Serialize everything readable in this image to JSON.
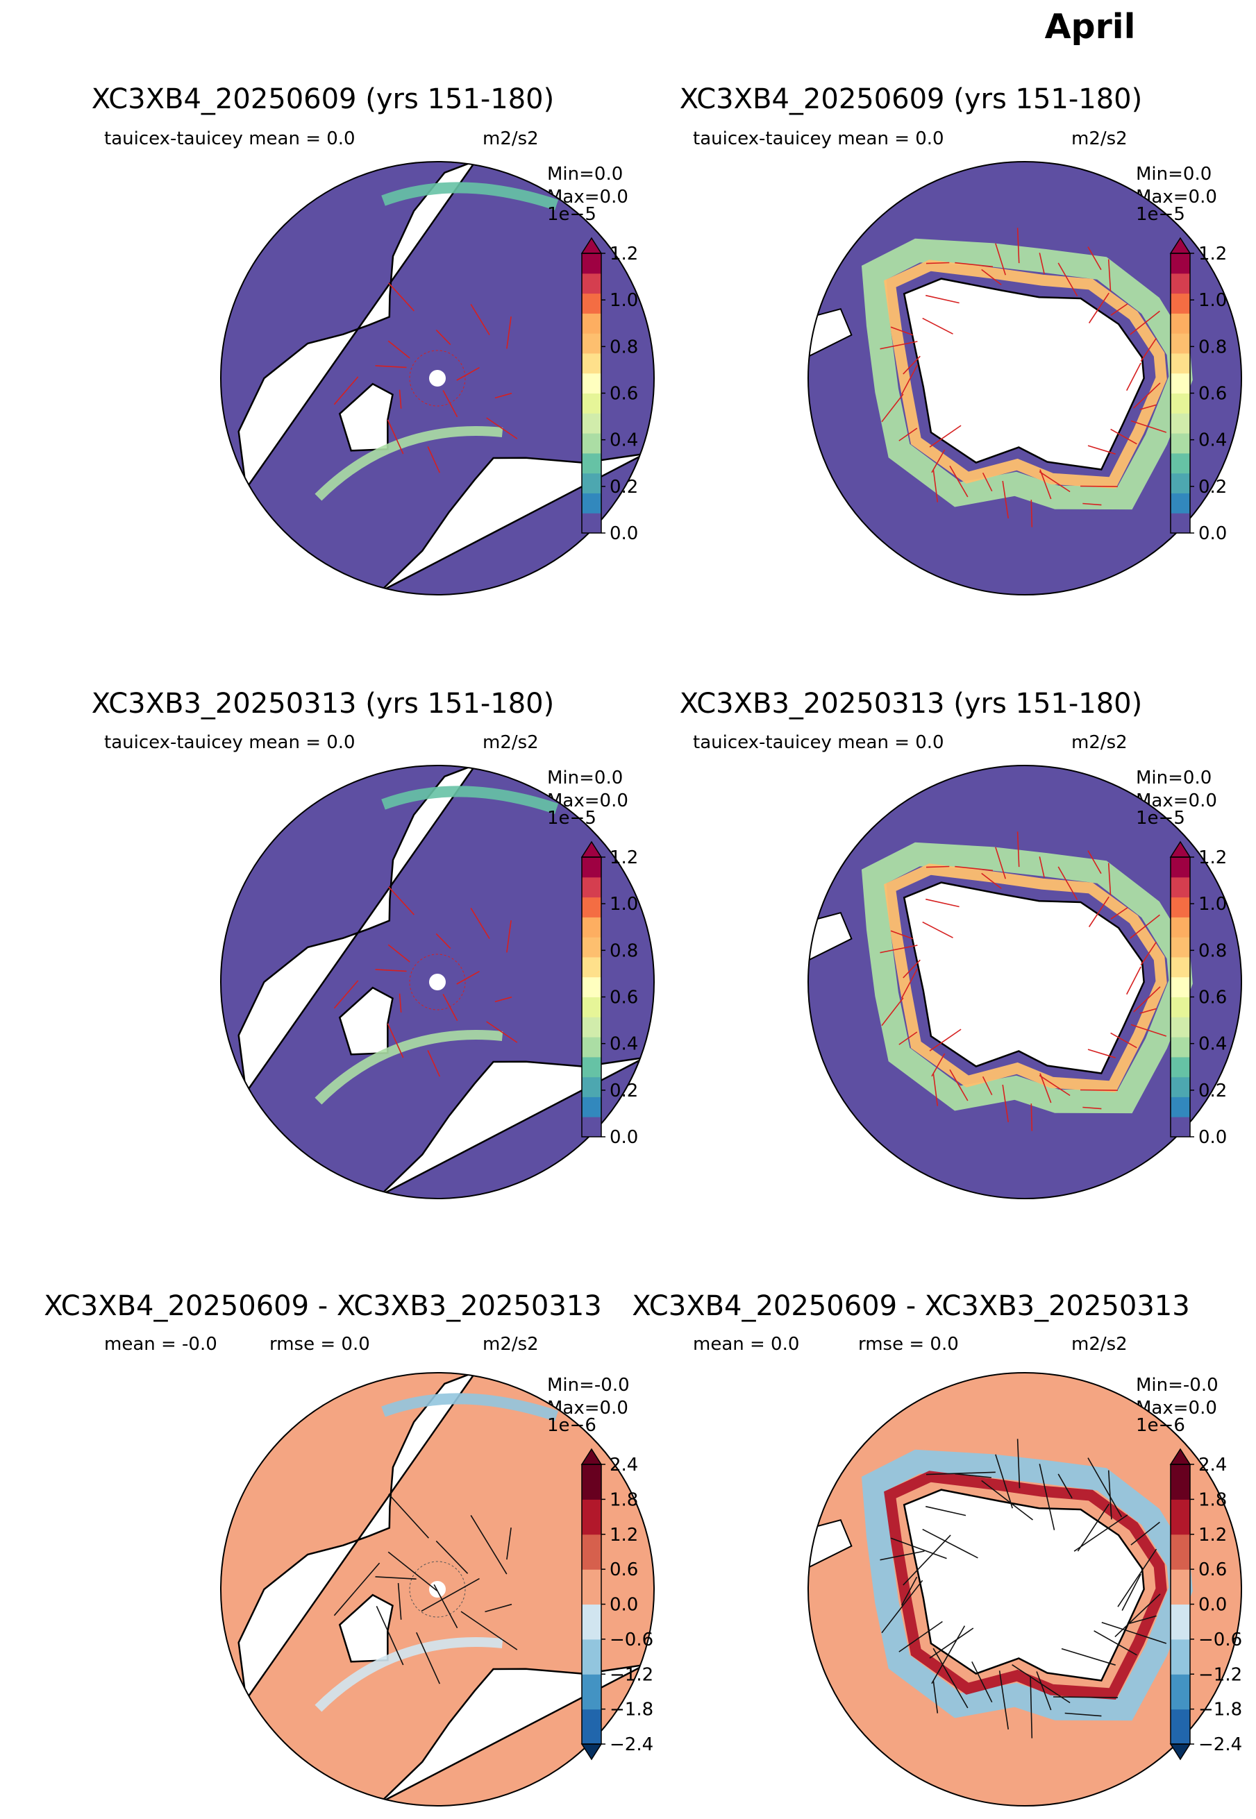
{
  "figure": {
    "month": "April"
  },
  "panels": [
    {
      "title": "XC3XB4_20250609 (yrs 151-180)",
      "stat1": "tauicex-tauicey  mean = 0.0",
      "stat2": "",
      "units": "m2/s2",
      "minmax_min": "Min=0.0",
      "minmax_max": "Max=0.0",
      "scale": "1e−5",
      "colorbar": "seq",
      "hemisphere": "north",
      "arrow_color": "#d62020"
    },
    {
      "title": "XC3XB4_20250609 (yrs 151-180)",
      "stat1": "tauicex-tauicey  mean = 0.0",
      "stat2": "",
      "units": "m2/s2",
      "minmax_min": "Min=0.0",
      "minmax_max": "Max=0.0",
      "scale": "1e−5",
      "colorbar": "seq",
      "hemisphere": "south",
      "arrow_color": "#d62020"
    },
    {
      "title": "XC3XB3_20250313 (yrs 151-180)",
      "stat1": "tauicex-tauicey  mean = 0.0",
      "stat2": "",
      "units": "m2/s2",
      "minmax_min": "Min=0.0",
      "minmax_max": "Max=0.0",
      "scale": "1e−5",
      "colorbar": "seq",
      "hemisphere": "north",
      "arrow_color": "#d62020"
    },
    {
      "title": "XC3XB3_20250313 (yrs 151-180)",
      "stat1": "tauicex-tauicey  mean = 0.0",
      "stat2": "",
      "units": "m2/s2",
      "minmax_min": "Min=0.0",
      "minmax_max": "Max=0.0",
      "scale": "1e−5",
      "colorbar": "seq",
      "hemisphere": "south",
      "arrow_color": "#d62020"
    },
    {
      "title": "XC3XB4_20250609 - XC3XB3_20250313",
      "stat1": "mean = -0.0",
      "stat2": "rmse = 0.0",
      "units": "m2/s2",
      "minmax_min": "Min=-0.0",
      "minmax_max": "Max=0.0",
      "scale": "1e−6",
      "colorbar": "div",
      "hemisphere": "north",
      "arrow_color": "#111111"
    },
    {
      "title": "XC3XB4_20250609 - XC3XB3_20250313",
      "stat1": "mean = 0.0",
      "stat2": "rmse = 0.0",
      "units": "m2/s2",
      "minmax_min": "Min=-0.0",
      "minmax_max": "Max=0.0",
      "scale": "1e−6",
      "colorbar": "div",
      "hemisphere": "south",
      "arrow_color": "#111111"
    }
  ],
  "colorbars": {
    "seq": {
      "ticks": [
        "0.0",
        "0.2",
        "0.4",
        "0.6",
        "0.8",
        "1.0",
        "1.2"
      ],
      "colors": [
        "#5e4fa2",
        "#3288bd",
        "#4da7b0",
        "#66c2a5",
        "#abdda4",
        "#d1ecab",
        "#e6f598",
        "#ffffbf",
        "#fee08b",
        "#fdbf6f",
        "#fdae61",
        "#f46d43",
        "#d53e4f",
        "#9e0142"
      ],
      "extend_color": "#9e0142"
    },
    "div": {
      "ticks": [
        "−2.4",
        "−1.8",
        "−1.2",
        "−0.6",
        "0.0",
        "0.6",
        "1.2",
        "1.8",
        "2.4"
      ],
      "colors": [
        "#2166ac",
        "#4393c3",
        "#92c5de",
        "#d1e5f0",
        "#f4a582",
        "#d6604d",
        "#b2182b",
        "#67001f"
      ],
      "extend_low": "#053061",
      "extend_high": "#67001f"
    }
  },
  "chart_data": [
    {
      "type": "heatmap",
      "title": "XC3XB4_20250609 (yrs 151-180)",
      "variable": "tauicex-tauicey",
      "hemisphere": "north",
      "mean": 0.0,
      "min": 0.0,
      "max": 0.0,
      "units": "m2/s2",
      "scale": "1e-5",
      "color_range": [
        0.0,
        1.2
      ]
    },
    {
      "type": "heatmap",
      "title": "XC3XB4_20250609 (yrs 151-180)",
      "variable": "tauicex-tauicey",
      "hemisphere": "south",
      "mean": 0.0,
      "min": 0.0,
      "max": 0.0,
      "units": "m2/s2",
      "scale": "1e-5",
      "color_range": [
        0.0,
        1.2
      ]
    },
    {
      "type": "heatmap",
      "title": "XC3XB3_20250313 (yrs 151-180)",
      "variable": "tauicex-tauicey",
      "hemisphere": "north",
      "mean": 0.0,
      "min": 0.0,
      "max": 0.0,
      "units": "m2/s2",
      "scale": "1e-5",
      "color_range": [
        0.0,
        1.2
      ]
    },
    {
      "type": "heatmap",
      "title": "XC3XB3_20250313 (yrs 151-180)",
      "variable": "tauicex-tauicey",
      "hemisphere": "south",
      "mean": 0.0,
      "min": 0.0,
      "max": 0.0,
      "units": "m2/s2",
      "scale": "1e-5",
      "color_range": [
        0.0,
        1.2
      ]
    },
    {
      "type": "heatmap",
      "title": "XC3XB4_20250609 - XC3XB3_20250313",
      "hemisphere": "north",
      "mean": -0.0,
      "rmse": 0.0,
      "min": -0.0,
      "max": 0.0,
      "units": "m2/s2",
      "scale": "1e-6",
      "color_range": [
        -2.4,
        2.4
      ]
    },
    {
      "type": "heatmap",
      "title": "XC3XB4_20250609 - XC3XB3_20250313",
      "hemisphere": "south",
      "mean": 0.0,
      "rmse": 0.0,
      "min": -0.0,
      "max": 0.0,
      "units": "m2/s2",
      "scale": "1e-6",
      "color_range": [
        -2.4,
        2.4
      ]
    }
  ]
}
